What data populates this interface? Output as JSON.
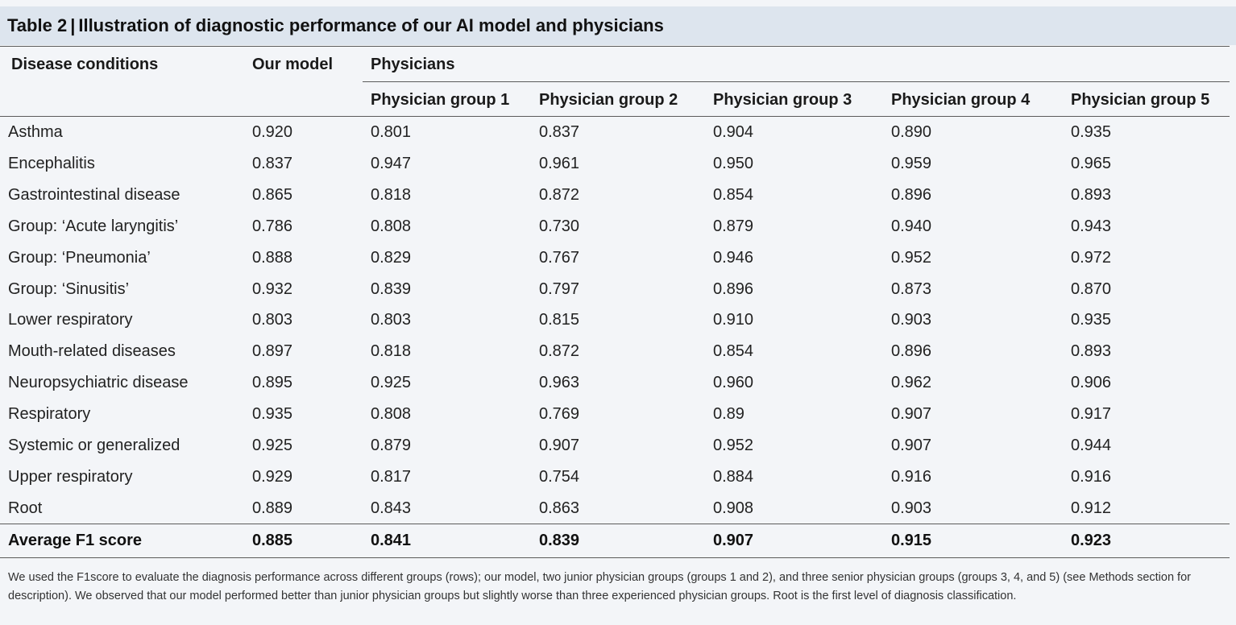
{
  "title": {
    "label": "Table 2",
    "text": "Illustration of diagnostic performance of our AI model and physicians"
  },
  "headers": {
    "disease": "Disease conditions",
    "model": "Our model",
    "physicians": "Physicians",
    "groups": [
      "Physician group 1",
      "Physician group 2",
      "Physician group 3",
      "Physician group 4",
      "Physician group 5"
    ]
  },
  "rows": [
    {
      "name": "Asthma",
      "values": [
        "0.920",
        "0.801",
        "0.837",
        "0.904",
        "0.890",
        "0.935"
      ]
    },
    {
      "name": "Encephalitis",
      "values": [
        "0.837",
        "0.947",
        "0.961",
        "0.950",
        "0.959",
        "0.965"
      ]
    },
    {
      "name": "Gastrointestinal disease",
      "values": [
        "0.865",
        "0.818",
        "0.872",
        "0.854",
        "0.896",
        "0.893"
      ]
    },
    {
      "name": "Group: ‘Acute laryngitis’",
      "values": [
        "0.786",
        "0.808",
        "0.730",
        "0.879",
        "0.940",
        "0.943"
      ]
    },
    {
      "name": "Group: ‘Pneumonia’",
      "values": [
        "0.888",
        "0.829",
        "0.767",
        "0.946",
        "0.952",
        "0.972"
      ]
    },
    {
      "name": "Group: ‘Sinusitis’",
      "values": [
        "0.932",
        "0.839",
        "0.797",
        "0.896",
        "0.873",
        "0.870"
      ]
    },
    {
      "name": "Lower respiratory",
      "values": [
        "0.803",
        "0.803",
        "0.815",
        "0.910",
        "0.903",
        "0.935"
      ]
    },
    {
      "name": "Mouth-related diseases",
      "values": [
        "0.897",
        "0.818",
        "0.872",
        "0.854",
        "0.896",
        "0.893"
      ]
    },
    {
      "name": "Neuropsychiatric disease",
      "values": [
        "0.895",
        "0.925",
        "0.963",
        "0.960",
        "0.962",
        "0.906"
      ]
    },
    {
      "name": "Respiratory",
      "values": [
        "0.935",
        "0.808",
        "0.769",
        "0.89",
        "0.907",
        "0.917"
      ]
    },
    {
      "name": "Systemic or generalized",
      "values": [
        "0.925",
        "0.879",
        "0.907",
        "0.952",
        "0.907",
        "0.944"
      ]
    },
    {
      "name": "Upper respiratory",
      "values": [
        "0.929",
        "0.817",
        "0.754",
        "0.884",
        "0.916",
        "0.916"
      ]
    },
    {
      "name": "Root",
      "values": [
        "0.889",
        "0.843",
        "0.863",
        "0.908",
        "0.903",
        "0.912"
      ]
    }
  ],
  "average": {
    "name": "Average F1 score",
    "values": [
      "0.885",
      "0.841",
      "0.839",
      "0.907",
      "0.915",
      "0.923"
    ]
  },
  "footnote": "We used the F1score to evaluate the diagnosis performance across different groups (rows); our model, two junior physician groups (groups 1 and 2), and three senior physician groups (groups 3, 4, and 5) (see Methods section for description). We observed that our model performed better than junior physician groups but slightly worse than three experienced physician groups. Root is the first level of diagnosis classification."
}
